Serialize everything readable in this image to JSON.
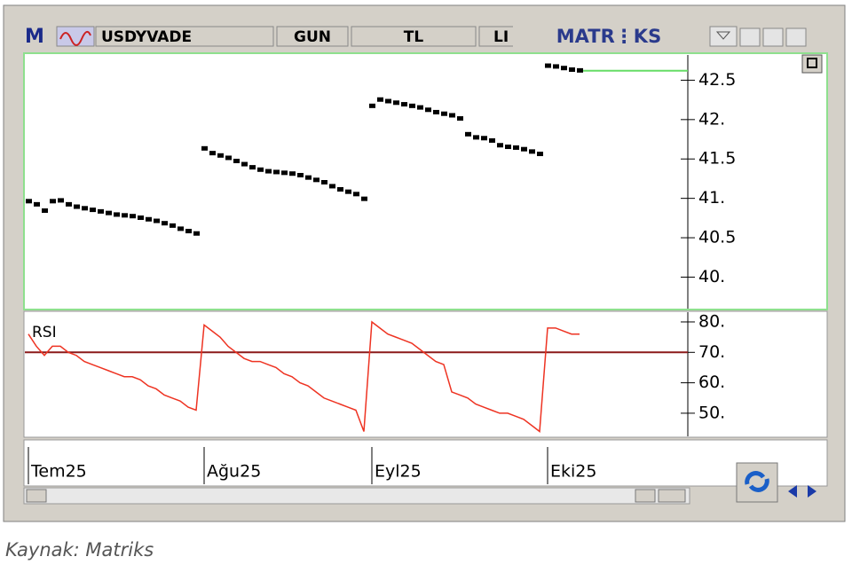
{
  "toolbar": {
    "logo": "M",
    "symbol": "USDYVADE",
    "period": "GUN",
    "currency": "TL",
    "tab": "LI",
    "brand": "MATR⋮KS"
  },
  "chart_data": [
    {
      "type": "dot",
      "color": "#000000",
      "categories": [
        "Tem25",
        null,
        null,
        null,
        null,
        null,
        null,
        null,
        null,
        null,
        null,
        null,
        null,
        null,
        null,
        null,
        null,
        null,
        null,
        null,
        null,
        null,
        "Ağu25",
        null,
        null,
        null,
        null,
        null,
        null,
        null,
        null,
        null,
        null,
        null,
        null,
        null,
        null,
        null,
        null,
        null,
        null,
        null,
        null,
        "Eyl25",
        null,
        null,
        null,
        null,
        null,
        null,
        null,
        null,
        null,
        null,
        null,
        null,
        null,
        null,
        null,
        null,
        null,
        null,
        null,
        null,
        null,
        "Eki25",
        null,
        null,
        null,
        null
      ],
      "values": [
        40.97,
        40.93,
        40.85,
        40.97,
        40.98,
        40.93,
        40.9,
        40.88,
        40.86,
        40.84,
        40.82,
        40.8,
        40.79,
        40.78,
        40.76,
        40.74,
        40.72,
        40.69,
        40.66,
        40.62,
        40.59,
        40.56,
        41.64,
        41.58,
        41.55,
        41.52,
        41.48,
        41.44,
        41.4,
        41.37,
        41.35,
        41.34,
        41.33,
        41.32,
        41.3,
        41.27,
        41.24,
        41.21,
        41.16,
        41.12,
        41.09,
        41.06,
        41.0,
        42.18,
        42.26,
        42.24,
        42.22,
        42.2,
        42.18,
        42.16,
        42.13,
        42.1,
        42.08,
        42.06,
        42.02,
        41.82,
        41.78,
        41.77,
        41.74,
        41.68,
        41.66,
        41.65,
        41.63,
        41.6,
        41.57,
        42.69,
        42.68,
        42.66,
        42.64,
        42.63
      ],
      "reference_line": 42.62,
      "reference_color": "#66dd66",
      "ylim": [
        39.6,
        42.82
      ],
      "yticks": [
        {
          "value": 40,
          "label": "40."
        },
        40.5,
        {
          "value": 41,
          "label": "41."
        },
        41.5,
        {
          "value": 42,
          "label": "42."
        },
        42.5
      ]
    },
    {
      "type": "line",
      "title": "RSI",
      "color": "#ee3322",
      "values": [
        76,
        72,
        69,
        72,
        72,
        70,
        69,
        67,
        66,
        65,
        64,
        63,
        62,
        62,
        61,
        59,
        58,
        56,
        55,
        54,
        52,
        51,
        79,
        77,
        75,
        72,
        70,
        68,
        67,
        67,
        66,
        65,
        63,
        62,
        60,
        59,
        57,
        55,
        54,
        53,
        52,
        51,
        44,
        80,
        78,
        76,
        75,
        74,
        73,
        71,
        69,
        67,
        66,
        57,
        56,
        55,
        53,
        52,
        51,
        50,
        50,
        49,
        48,
        46,
        44,
        78,
        78,
        77,
        76,
        76
      ],
      "reference_line": 70,
      "reference_color": "#8b1a1a",
      "ylim": [
        42.4,
        83.2
      ],
      "yticks": [
        {
          "value": 50,
          "label": "50."
        },
        {
          "value": 60,
          "label": "60."
        },
        {
          "value": 70,
          "label": "70."
        },
        {
          "value": 80,
          "label": "80."
        }
      ]
    }
  ],
  "caption": "Kaynak: Matriks"
}
